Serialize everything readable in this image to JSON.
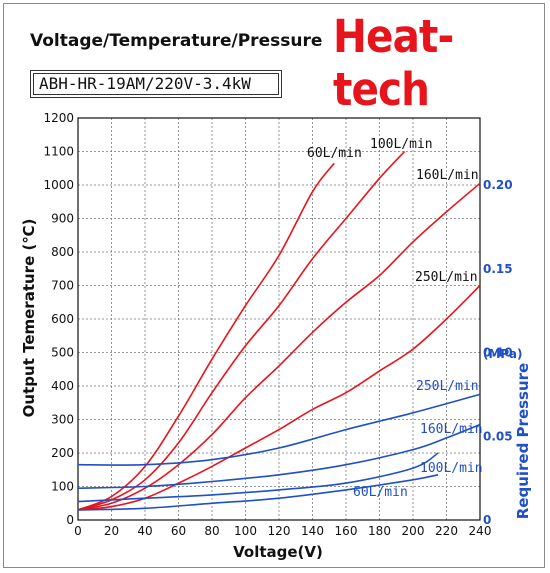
{
  "header": {
    "title": "Voltage/Temperature/Pressure",
    "brand": "Heat-tech",
    "model": "ABH-HR-19AM/220V-3.4kW"
  },
  "colors": {
    "temperature": "#e8141b",
    "pressure": "#1f4fc9",
    "brand": "#e8141b"
  },
  "chart_data": {
    "type": "line",
    "xlabel": "Voltage(V)",
    "ylabel": "Output Temerature (℃)",
    "y2label": "Required Pressure",
    "y2unit": "(MPa)",
    "xlim": [
      0,
      240
    ],
    "ylim": [
      0,
      1200
    ],
    "y2lim": [
      0,
      0.24
    ],
    "grid": true,
    "x_ticks": [
      0,
      20,
      40,
      60,
      80,
      100,
      120,
      140,
      160,
      180,
      200,
      220,
      240
    ],
    "y_ticks": [
      0,
      100,
      200,
      300,
      400,
      500,
      600,
      700,
      800,
      900,
      1000,
      1100,
      1200
    ],
    "y2_ticks": [
      "0",
      "0.05",
      "0.10",
      "0.15",
      "0.20"
    ],
    "temperature_series": [
      {
        "name": "60L/min",
        "points": [
          [
            0,
            30
          ],
          [
            20,
            70
          ],
          [
            40,
            160
          ],
          [
            60,
            310
          ],
          [
            80,
            480
          ],
          [
            100,
            640
          ],
          [
            120,
            790
          ],
          [
            140,
            980
          ],
          [
            153,
            1065
          ]
        ]
      },
      {
        "name": "100L/min",
        "points": [
          [
            0,
            30
          ],
          [
            20,
            60
          ],
          [
            40,
            120
          ],
          [
            60,
            230
          ],
          [
            80,
            380
          ],
          [
            100,
            520
          ],
          [
            120,
            640
          ],
          [
            140,
            780
          ],
          [
            160,
            900
          ],
          [
            180,
            1020
          ],
          [
            195,
            1100
          ]
        ]
      },
      {
        "name": "160L/min",
        "points": [
          [
            0,
            30
          ],
          [
            20,
            50
          ],
          [
            40,
            95
          ],
          [
            60,
            165
          ],
          [
            80,
            255
          ],
          [
            100,
            365
          ],
          [
            120,
            460
          ],
          [
            140,
            560
          ],
          [
            160,
            650
          ],
          [
            180,
            730
          ],
          [
            200,
            830
          ],
          [
            220,
            920
          ],
          [
            240,
            1005
          ]
        ]
      },
      {
        "name": "250L/min",
        "points": [
          [
            0,
            30
          ],
          [
            20,
            40
          ],
          [
            40,
            65
          ],
          [
            60,
            110
          ],
          [
            80,
            160
          ],
          [
            100,
            215
          ],
          [
            120,
            270
          ],
          [
            140,
            330
          ],
          [
            160,
            380
          ],
          [
            180,
            445
          ],
          [
            200,
            510
          ],
          [
            220,
            600
          ],
          [
            240,
            700
          ]
        ]
      }
    ],
    "pressure_series": [
      {
        "name": "250L/min",
        "points": [
          [
            0,
            0.033
          ],
          [
            40,
            0.033
          ],
          [
            80,
            0.036
          ],
          [
            120,
            0.043
          ],
          [
            160,
            0.054
          ],
          [
            200,
            0.064
          ],
          [
            240,
            0.075
          ]
        ]
      },
      {
        "name": "160L/min",
        "points": [
          [
            0,
            0.019
          ],
          [
            40,
            0.02
          ],
          [
            80,
            0.023
          ],
          [
            120,
            0.027
          ],
          [
            160,
            0.033
          ],
          [
            200,
            0.042
          ],
          [
            220,
            0.049
          ],
          [
            240,
            0.057
          ]
        ]
      },
      {
        "name": "100L/min",
        "points": [
          [
            0,
            0.011
          ],
          [
            40,
            0.013
          ],
          [
            80,
            0.015
          ],
          [
            120,
            0.018
          ],
          [
            160,
            0.022
          ],
          [
            200,
            0.031
          ],
          [
            215,
            0.04
          ]
        ]
      },
      {
        "name": "60L/min",
        "points": [
          [
            0,
            0.006
          ],
          [
            40,
            0.007
          ],
          [
            80,
            0.01
          ],
          [
            120,
            0.013
          ],
          [
            160,
            0.018
          ],
          [
            200,
            0.024
          ],
          [
            215,
            0.027
          ]
        ]
      }
    ]
  }
}
